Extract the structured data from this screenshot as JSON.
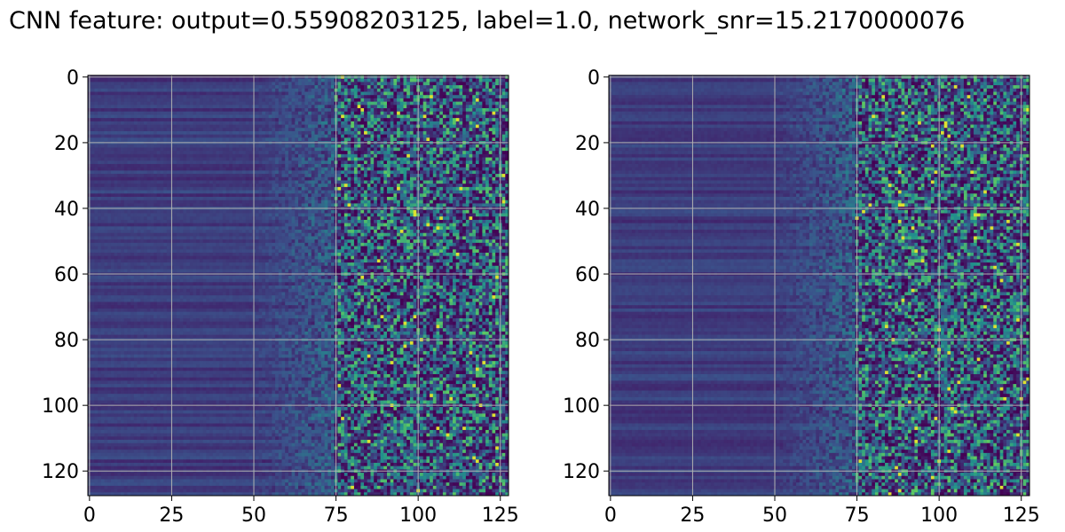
{
  "title": "CNN feature: output=0.55908203125, label=1.0, network_snr=15.2170000076",
  "colormap": [
    "#440154",
    "#3b528b",
    "#21918c",
    "#5ec962",
    "#fde725"
  ],
  "chart_data": [
    {
      "type": "heatmap",
      "panel": "left",
      "rows": 128,
      "cols": 128,
      "xlim": [
        0,
        127
      ],
      "ylim": [
        127,
        0
      ],
      "xticks": [
        0,
        25,
        50,
        75,
        100,
        125
      ],
      "yticks": [
        0,
        20,
        40,
        60,
        80,
        100,
        120
      ],
      "grid": true,
      "colormap": "viridis",
      "description_of_values": "low uniform values for columns 0-50, increasing noise for columns 50-75, high-variance values for columns 75-127"
    },
    {
      "type": "heatmap",
      "panel": "right",
      "rows": 128,
      "cols": 128,
      "xlim": [
        0,
        127
      ],
      "ylim": [
        127,
        0
      ],
      "xticks": [
        0,
        25,
        50,
        75,
        100,
        125
      ],
      "yticks": [
        0,
        20,
        40,
        60,
        80,
        100,
        120
      ],
      "grid": true,
      "colormap": "viridis",
      "description_of_values": "low uniform values for columns 0-50, increasing noise for columns 50-75, high-variance values for columns 75-127"
    }
  ]
}
